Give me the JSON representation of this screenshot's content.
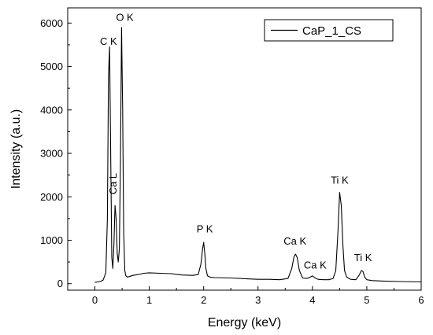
{
  "chart_data": {
    "type": "line",
    "xlabel": "Energy (keV)",
    "ylabel": "Intensity (a.u.)",
    "xlim": [
      -0.5,
      6
    ],
    "ylim": [
      -150,
      6350
    ],
    "xticks": [
      0,
      1,
      2,
      3,
      4,
      5,
      6
    ],
    "yticks": [
      0,
      1000,
      2000,
      3000,
      4000,
      5000,
      6000
    ],
    "legend": {
      "position": "top-right"
    },
    "series": [
      {
        "name": "CaP_1_CS",
        "color": "#000000",
        "x": [
          0.0,
          0.05,
          0.1,
          0.15,
          0.2,
          0.23,
          0.25,
          0.27,
          0.29,
          0.31,
          0.33,
          0.35,
          0.37,
          0.39,
          0.41,
          0.43,
          0.45,
          0.47,
          0.49,
          0.51,
          0.53,
          0.55,
          0.57,
          0.6,
          0.65,
          0.7,
          0.8,
          0.9,
          1.0,
          1.2,
          1.4,
          1.6,
          1.8,
          1.9,
          1.95,
          1.98,
          2.0,
          2.02,
          2.04,
          2.07,
          2.12,
          2.2,
          2.5,
          2.8,
          3.0,
          3.2,
          3.4,
          3.55,
          3.62,
          3.66,
          3.69,
          3.72,
          3.76,
          3.82,
          3.9,
          3.96,
          4.0,
          4.04,
          4.1,
          4.2,
          4.3,
          4.38,
          4.43,
          4.47,
          4.5,
          4.53,
          4.56,
          4.59,
          4.63,
          4.7,
          4.8,
          4.86,
          4.9,
          4.93,
          4.96,
          5.0,
          5.1,
          5.3,
          5.6,
          6.0
        ],
        "y": [
          30,
          40,
          50,
          80,
          250,
          1500,
          4800,
          5450,
          3000,
          600,
          350,
          900,
          1800,
          1500,
          700,
          500,
          800,
          2800,
          5900,
          4000,
          1200,
          300,
          180,
          150,
          170,
          190,
          210,
          240,
          250,
          240,
          230,
          200,
          190,
          210,
          450,
          800,
          950,
          700,
          350,
          180,
          150,
          140,
          130,
          110,
          100,
          100,
          90,
          120,
          350,
          620,
          680,
          600,
          300,
          130,
          120,
          150,
          180,
          140,
          100,
          90,
          90,
          120,
          300,
          1200,
          2100,
          1800,
          900,
          300,
          150,
          100,
          90,
          200,
          300,
          280,
          150,
          90,
          70,
          60,
          50,
          40
        ]
      }
    ],
    "annotations": [
      {
        "text": "C K",
        "x": 0.25,
        "y": 5500
      },
      {
        "text": "O K",
        "x": 0.55,
        "y": 6050
      },
      {
        "text": "Ca L",
        "x": 0.4,
        "y": 2300,
        "rotation": -90
      },
      {
        "text": "P K",
        "x": 2.02,
        "y": 1180
      },
      {
        "text": "Ca K",
        "x": 3.68,
        "y": 900
      },
      {
        "text": "Ca K",
        "x": 4.05,
        "y": 350
      },
      {
        "text": "Ti K",
        "x": 4.5,
        "y": 2300
      },
      {
        "text": "Ti K",
        "x": 4.93,
        "y": 520
      }
    ]
  }
}
